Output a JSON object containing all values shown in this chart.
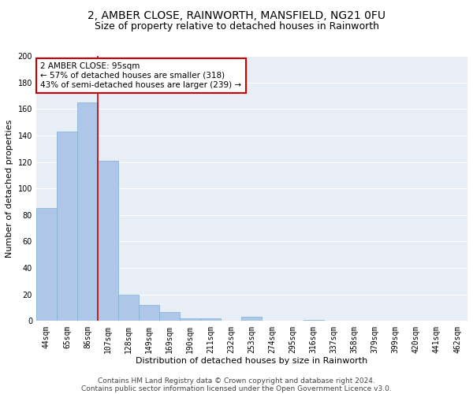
{
  "title": "2, AMBER CLOSE, RAINWORTH, MANSFIELD, NG21 0FU",
  "subtitle": "Size of property relative to detached houses in Rainworth",
  "xlabel": "Distribution of detached houses by size in Rainworth",
  "ylabel": "Number of detached properties",
  "categories": [
    "44sqm",
    "65sqm",
    "86sqm",
    "107sqm",
    "128sqm",
    "149sqm",
    "169sqm",
    "190sqm",
    "211sqm",
    "232sqm",
    "253sqm",
    "274sqm",
    "295sqm",
    "316sqm",
    "337sqm",
    "358sqm",
    "379sqm",
    "399sqm",
    "420sqm",
    "441sqm",
    "462sqm"
  ],
  "values": [
    85,
    143,
    165,
    121,
    20,
    12,
    7,
    2,
    2,
    0,
    3,
    0,
    0,
    1,
    0,
    0,
    0,
    0,
    0,
    0,
    0
  ],
  "bar_color": "#aec6e8",
  "bar_edge_color": "#7bafd4",
  "redline_x": 2.5,
  "annotation_text": "2 AMBER CLOSE: 95sqm\n← 57% of detached houses are smaller (318)\n43% of semi-detached houses are larger (239) →",
  "annotation_box_color": "#ffffff",
  "annotation_box_edgecolor": "#cc0000",
  "redline_color": "#cc0000",
  "ylim": [
    0,
    200
  ],
  "yticks": [
    0,
    20,
    40,
    60,
    80,
    100,
    120,
    140,
    160,
    180,
    200
  ],
  "footnote1": "Contains HM Land Registry data © Crown copyright and database right 2024.",
  "footnote2": "Contains public sector information licensed under the Open Government Licence v3.0.",
  "background_color": "#e8eef5",
  "title_fontsize": 10,
  "subtitle_fontsize": 9,
  "axis_label_fontsize": 8,
  "tick_fontsize": 7,
  "annotation_fontsize": 7.5,
  "footnote_fontsize": 6.5
}
